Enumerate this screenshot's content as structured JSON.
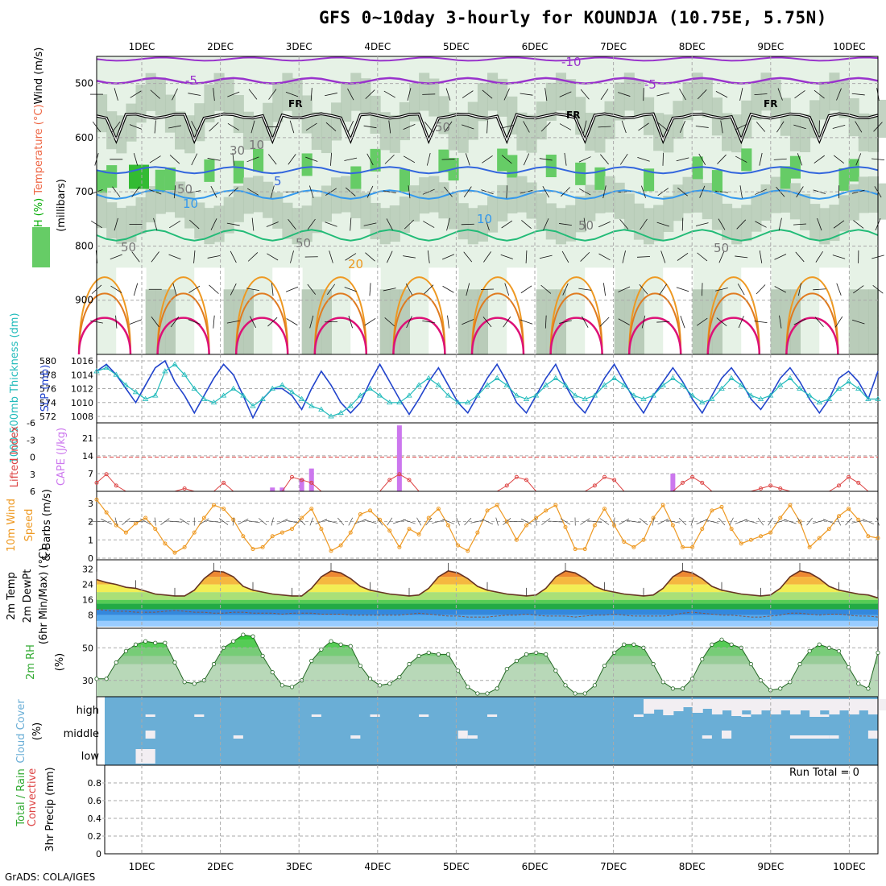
{
  "title": "GFS 0~10day 3-hourly for KOUNDJA (10.75E, 5.75N)",
  "credit": "GrADS: COLA/IGES",
  "colors": {
    "grid": "#aaaaaa",
    "rh_light": "#e6f2e6",
    "rh_mid": "#b4c8b4",
    "rh_green": "#66cc66",
    "temp_purple": "#9933cc",
    "temp_blue": "#3366dd",
    "temp_skyblue": "#3399ee",
    "temp_green": "#22bb77",
    "temp_orange": "#ee9922",
    "temp_magenta": "#dd1177",
    "slp": "#2244cc",
    "thickness": "#22bbbb",
    "lifted": "#dd4444",
    "cape": "#cc77ee",
    "wind10": "#ee9922",
    "cloud_bg": "#6aaed6",
    "cloud_fill": "#f2eef2"
  },
  "chart_data": [
    {
      "type": "line",
      "panel": "upper-air",
      "ylabel_parts": [
        "RH (%)",
        "Temperature (°C)",
        "Wind (m/s)"
      ],
      "ylabel2": "(millibars)",
      "x": [
        "1DEC",
        "2DEC",
        "3DEC",
        "4DEC",
        "5DEC",
        "6DEC",
        "7DEC",
        "8DEC",
        "9DEC",
        "10DEC"
      ],
      "yticks": [
        500,
        600,
        700,
        800,
        900
      ],
      "ylim": [
        1000,
        450
      ],
      "annotations": [
        "FR",
        "FR",
        "FR",
        "-10",
        "-5",
        "-5",
        "5",
        "10",
        "10",
        "20",
        "30",
        "10",
        "50",
        "50",
        "50",
        "50",
        "50",
        "50"
      ]
    },
    {
      "type": "line",
      "panel": "slp-thickness",
      "ylabel_left": "1000-500mb Thickness (dm)",
      "ylabel_right": "SLP (mb)",
      "yticks_left": [
        572,
        574,
        576,
        578,
        580
      ],
      "yticks_right": [
        1008,
        1010,
        1012,
        1014,
        1016
      ],
      "series": [
        {
          "name": "SLP",
          "values": [
            1014.5,
            1015.5,
            1014,
            1012,
            1010,
            1012.5,
            1015,
            1016,
            1013,
            1011,
            1008.5,
            1011,
            1013.5,
            1015.5,
            1014,
            1011,
            1007.8,
            1010.5,
            1012,
            1012,
            1011,
            1009,
            1012,
            1014.5,
            1012.5,
            1010,
            1008.5,
            1010,
            1013,
            1015.5,
            1013,
            1010.5,
            1008.3,
            1010.5,
            1013,
            1015,
            1012.5,
            1010,
            1008.5,
            1011,
            1013.5,
            1015.5,
            1013,
            1010,
            1008.5,
            1011,
            1013.5,
            1015.5,
            1012.5,
            1010,
            1008.5,
            1011,
            1013.5,
            1015.5,
            1013,
            1010.5,
            1008.5,
            1011,
            1013,
            1015,
            1013,
            1010.5,
            1008.5,
            1011,
            1013.5,
            1015,
            1013,
            1010.5,
            1009,
            1011,
            1013.5,
            1015,
            1013,
            1010.5,
            1008.5,
            1010.5,
            1013.5,
            1014.5,
            1013,
            1010.5,
            1014.5
          ]
        },
        {
          "name": "1000-500mb Thickness",
          "values": [
            578.5,
            579,
            578,
            576.5,
            575.5,
            574.5,
            575,
            578.5,
            579.5,
            578,
            576,
            574.5,
            574,
            575,
            576,
            575,
            573.5,
            574.5,
            576,
            576.5,
            575.5,
            574.5,
            573.5,
            573,
            572,
            572.5,
            573.5,
            575,
            576,
            575,
            574,
            574,
            575,
            576.5,
            577.5,
            576.5,
            575,
            574,
            574,
            575,
            576.5,
            577.5,
            576.5,
            575,
            574.5,
            575,
            576.5,
            577.5,
            576.5,
            575,
            574.5,
            575,
            576.5,
            577.5,
            576.5,
            575,
            574.5,
            575,
            576.5,
            577.5,
            576.5,
            575,
            574,
            574.5,
            576,
            577.5,
            576.5,
            575,
            574.5,
            575,
            576.5,
            577.5,
            576,
            575,
            574,
            574.5,
            576,
            577,
            576,
            574.5,
            574.5
          ]
        }
      ]
    },
    {
      "type": "bar",
      "panel": "lifted-cape",
      "ylabel_left": "Lifted Index",
      "ylabel_right": "CAPE (J/kg)",
      "yticks_left": [
        "-6",
        "-3",
        "0",
        "3",
        "6"
      ],
      "yticks_right": [
        7,
        14,
        21
      ],
      "series": [
        {
          "name": "Lifted Index",
          "values": [
            4.5,
            3,
            5,
            6,
            6,
            6,
            6,
            6,
            6,
            5.5,
            6,
            6,
            6,
            4.5,
            6,
            6,
            6,
            6,
            6,
            6,
            3.5,
            4,
            4.5,
            6,
            6,
            6,
            6,
            6,
            6,
            6,
            4,
            3,
            4,
            6,
            6,
            6,
            6,
            6,
            6,
            6,
            6,
            6,
            5,
            3.5,
            4,
            6,
            6,
            6,
            6,
            6,
            6,
            5,
            3.5,
            4,
            6,
            6,
            6,
            6,
            6,
            6,
            4.5,
            3.5,
            4.5,
            6,
            6,
            6,
            6,
            6,
            5.5,
            5,
            5.5,
            6,
            6,
            6,
            6,
            6,
            5,
            3.5,
            4.5,
            6,
            6
          ]
        },
        {
          "name": "CAPE",
          "values": [
            0,
            0,
            0,
            0,
            0,
            0,
            0,
            0,
            0,
            0,
            0,
            0,
            0,
            0,
            0,
            0,
            0,
            0,
            1.5,
            1.5,
            0,
            5,
            9,
            0,
            0,
            0,
            0,
            0,
            0,
            0,
            0,
            26,
            0,
            0,
            0,
            0,
            0,
            0,
            0,
            0,
            0,
            0,
            0,
            0,
            0,
            0,
            0,
            0,
            0,
            0,
            0,
            0,
            0,
            0,
            0,
            0,
            0,
            0,
            0,
            7,
            0,
            0,
            0,
            0,
            0,
            0,
            0,
            0,
            0,
            0,
            0,
            0,
            0,
            0,
            0,
            0,
            0,
            0,
            0,
            0,
            0
          ]
        }
      ]
    },
    {
      "type": "line",
      "panel": "wind10m",
      "ylabel": "10m Wind Speed & Barbs (m/s)",
      "yticks": [
        0,
        1,
        2,
        3
      ],
      "series": [
        {
          "name": "10m Wind Speed",
          "values": [
            3.2,
            2.5,
            1.8,
            1.4,
            1.9,
            2.2,
            1.6,
            0.8,
            0.3,
            0.6,
            1.4,
            2.2,
            2.9,
            2.7,
            2.1,
            1.2,
            0.5,
            0.6,
            1.2,
            1.4,
            1.6,
            2.2,
            2.7,
            1.6,
            0.4,
            0.7,
            1.4,
            2.4,
            2.6,
            2.1,
            1.5,
            0.6,
            1.6,
            1.3,
            2.2,
            2.7,
            1.8,
            0.7,
            0.4,
            1.4,
            2.6,
            2.9,
            2.0,
            1.0,
            1.8,
            2.2,
            2.6,
            2.9,
            1.7,
            0.5,
            0.5,
            1.8,
            2.7,
            1.8,
            0.9,
            0.6,
            1.0,
            2.2,
            2.9,
            1.8,
            0.6,
            0.6,
            1.6,
            2.6,
            2.8,
            1.6,
            0.8,
            1.0,
            1.2,
            1.4,
            2.2,
            2.9,
            2.0,
            0.6,
            1.1,
            1.6,
            2.3,
            2.7,
            2.1,
            1.2,
            1.1
          ]
        }
      ]
    },
    {
      "type": "area",
      "panel": "temp2m",
      "ylabel": "2m Temp 2m DewPt (6hr Min/Max) (°C)",
      "yticks": [
        8,
        16,
        24,
        32
      ],
      "series": [
        {
          "name": "2m Temp",
          "values": [
            26.5,
            25,
            24,
            22.5,
            22,
            20.5,
            19,
            18.5,
            18,
            18,
            21,
            27,
            31,
            30.5,
            28,
            23,
            21,
            20,
            19,
            18.5,
            18,
            18,
            22,
            28,
            31,
            30,
            27,
            23,
            21,
            20,
            19,
            18.5,
            18,
            18.5,
            22,
            28,
            31,
            30,
            27,
            23,
            21,
            20,
            19,
            18.5,
            18,
            18.5,
            22,
            28,
            31,
            30,
            27,
            23,
            21,
            20,
            19,
            18.5,
            18,
            18.5,
            22,
            28,
            31,
            30,
            27,
            23,
            21,
            20,
            19,
            18.5,
            18,
            18.5,
            22,
            28,
            31,
            30,
            27,
            23,
            21,
            20,
            19,
            18.5,
            17
          ]
        },
        {
          "name": "2m DewPt",
          "values": [
            11,
            10.5,
            10,
            10,
            9.5,
            9.5,
            9.5,
            10,
            10.5,
            10,
            9.5,
            9.5,
            9,
            9,
            9.5,
            9.5,
            9,
            9,
            9,
            8.5,
            9,
            9,
            9,
            8.5,
            8.5,
            8.5,
            8,
            8,
            8,
            8,
            8,
            8,
            8.5,
            9,
            8.5,
            8,
            7.5,
            7.5,
            7,
            7,
            7,
            7.5,
            8,
            8,
            8.5,
            8,
            7.5,
            7.5,
            7.5,
            7,
            7.5,
            8,
            8,
            8.5,
            8,
            7.5,
            7.5,
            7.5,
            7.5,
            8,
            9,
            9.5,
            9,
            8.5,
            8,
            8,
            7.5,
            7,
            7,
            7.5,
            8,
            9,
            9,
            8.5,
            8,
            8.5,
            8.5,
            8,
            7.5,
            7.5,
            7
          ]
        }
      ]
    },
    {
      "type": "area",
      "panel": "rh2m",
      "ylabel": "2m RH (%)",
      "yticks": [
        30,
        50
      ],
      "series": [
        {
          "name": "2m RH",
          "values": [
            31,
            31,
            41,
            48,
            52,
            54,
            53,
            53,
            41,
            29,
            28,
            30,
            40,
            50,
            54,
            58,
            57,
            45,
            35,
            27,
            26,
            30,
            42,
            49,
            54,
            52,
            51,
            39,
            31,
            27,
            28,
            32,
            40,
            45,
            47,
            46,
            46,
            36,
            26,
            22,
            22,
            25,
            37,
            42,
            46,
            47,
            46,
            36,
            27,
            22,
            22,
            27,
            39,
            47,
            52,
            52,
            50,
            40,
            29,
            25,
            25,
            31,
            43,
            52,
            55,
            52,
            50,
            40,
            30,
            24,
            25,
            29,
            40,
            48,
            52,
            50,
            48,
            38,
            28,
            25,
            47
          ]
        }
      ]
    },
    {
      "type": "heatmap",
      "panel": "cloud",
      "ylabel": "Cloud Cover (%)",
      "yticks": [
        "high",
        "middle",
        "low"
      ]
    },
    {
      "type": "bar",
      "panel": "precip",
      "ylabel_parts": [
        "Total / Rain",
        "Convective",
        "3hr Precip (mm)"
      ],
      "yticks": [
        0,
        0.2,
        0.4,
        0.6,
        0.8
      ],
      "run_total": "Run Total = 0"
    }
  ]
}
